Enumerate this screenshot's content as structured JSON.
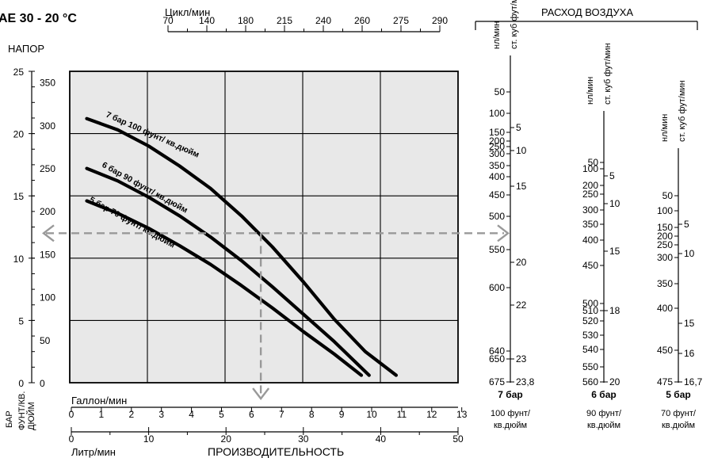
{
  "title": "AE 30 - 20 °C",
  "head_label": "НАПОР",
  "top_axis": {
    "label": "Цикл/мин",
    "ticks": [
      "70",
      "140",
      "180",
      "215",
      "240",
      "260",
      "275",
      "290"
    ]
  },
  "air_consumption": {
    "title": "РАСХОД ВОЗДУХА",
    "scales": [
      {
        "nl_label": "нл/мин",
        "cf_label": "ст. куб фут/мин",
        "left_ticks": [
          "50",
          "100",
          "150",
          "200",
          "250",
          "300",
          "350",
          "400",
          "450",
          "500",
          "550",
          "600",
          "640",
          "650",
          "675"
        ],
        "right_ticks": [
          "5",
          "10",
          "15",
          "20",
          "22",
          "23",
          "23,8"
        ],
        "pressure": "7 бар",
        "psi_line1": "100 фунт/",
        "psi_line2": "кв.дюйм"
      },
      {
        "nl_label": "нл/мин",
        "cf_label": "ст. куб фут/мин",
        "left_ticks": [
          "50",
          "100",
          "200",
          "250",
          "300",
          "350",
          "400",
          "450",
          "500",
          "510",
          "520",
          "530",
          "540",
          "550",
          "560"
        ],
        "right_ticks": [
          "5",
          "10",
          "15",
          "18",
          "20"
        ],
        "pressure": "6 бар",
        "psi_line1": "90 фунт/",
        "psi_line2": "кв.дюйм"
      },
      {
        "nl_label": "нл/мин",
        "cf_label": "ст. куб фут/мин",
        "left_ticks": [
          "50",
          "100",
          "150",
          "200",
          "250",
          "300",
          "350",
          "400",
          "450",
          "475"
        ],
        "right_ticks": [
          "5",
          "10",
          "15",
          "16",
          "16,7"
        ],
        "pressure": "5 бар",
        "psi_line1": "70 фунт/",
        "psi_line2": "кв.дюйм"
      }
    ]
  },
  "chart_data": {
    "type": "line",
    "xlabel": "ПРОИЗВОДИТЕЛЬНОСТЬ",
    "x_unit_liters": "Литр/мин",
    "x_unit_gallons": "Галлон/мин",
    "y_unit_bar": "БАР",
    "y_unit_psi": "ФУНТ/КВ. ДЮЙМ",
    "xlim": [
      0,
      50
    ],
    "ylim": [
      0,
      25
    ],
    "grid": true,
    "x_ticks_liters": [
      "0",
      "10",
      "20",
      "30",
      "40",
      "50"
    ],
    "x_ticks_gallons": [
      "0",
      "1",
      "2",
      "3",
      "4",
      "5",
      "6",
      "7",
      "8",
      "9",
      "10",
      "11",
      "12",
      "13"
    ],
    "y_ticks_bar": [
      "0",
      "5",
      "10",
      "15",
      "20",
      "25"
    ],
    "y_ticks_psi": [
      "0",
      "50",
      "100",
      "150",
      "200",
      "250",
      "300",
      "350"
    ],
    "series": [
      {
        "name": "7 бар 100 фунт/ кв.дюйм",
        "points": [
          [
            2,
            21.2
          ],
          [
            6,
            20.3
          ],
          [
            10,
            19
          ],
          [
            14,
            17.4
          ],
          [
            18,
            15.6
          ],
          [
            22,
            13.4
          ],
          [
            26,
            10.9
          ],
          [
            30,
            8.1
          ],
          [
            34,
            5.1
          ],
          [
            38,
            2.5
          ],
          [
            42,
            0.6
          ]
        ]
      },
      {
        "name": "6 бар 90 фунт/ кв.дюйм",
        "points": [
          [
            2,
            17.2
          ],
          [
            6,
            16.2
          ],
          [
            10,
            14.9
          ],
          [
            14,
            13.4
          ],
          [
            18,
            11.7
          ],
          [
            22,
            9.8
          ],
          [
            26,
            7.7
          ],
          [
            30,
            5.5
          ],
          [
            34,
            3.3
          ],
          [
            38.5,
            0.6
          ]
        ]
      },
      {
        "name": "5 бар 70 фунт/ кв.дюйм",
        "points": [
          [
            2,
            14.6
          ],
          [
            6,
            13.6
          ],
          [
            10,
            12.4
          ],
          [
            14,
            11
          ],
          [
            18,
            9.5
          ],
          [
            22,
            7.8
          ],
          [
            26,
            6
          ],
          [
            30,
            4.1
          ],
          [
            34,
            2.3
          ],
          [
            37.5,
            0.6
          ]
        ]
      }
    ],
    "reference": {
      "head_bar": 12,
      "flow_lpm": 24.5
    }
  }
}
